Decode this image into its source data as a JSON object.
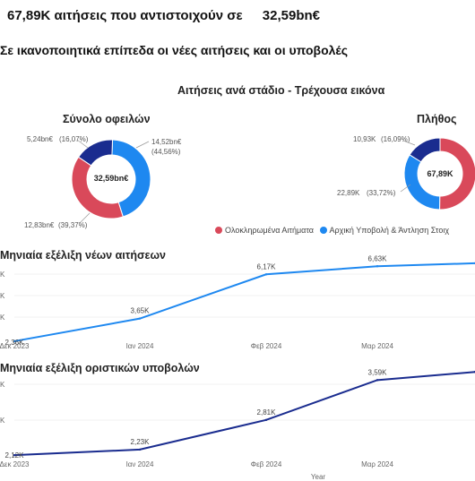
{
  "header": {
    "count": "67,89K",
    "text": "αιτήσεις που αντιστοιχούν σε",
    "amount": "32,59bn€"
  },
  "subheader": "Σε ικανοποιητικά επίπεδα οι νέες αιτήσεις και οι υποβολές",
  "panel_title": "Αιτήσεις ανά στάδιο - Τρέχουσα εικόνα",
  "legend": [
    {
      "label": "Ολοκληρωμένα Αιτήματα",
      "color": "#d9495a"
    },
    {
      "label": "Αρχική Υποβολή & Άντληση Στοιχ",
      "color": "#1e88f0"
    }
  ],
  "chart_data": [
    {
      "type": "pie",
      "title": "Σύνολο οφειλών",
      "center_label": "32,59bn€",
      "slices": [
        {
          "value_label": "14,52bn€",
          "pct_label": "(44,56%)",
          "pct": 44.56,
          "color": "#1e88f0"
        },
        {
          "value_label": "12,83bn€",
          "pct_label": "(39,37%)",
          "pct": 39.37,
          "color": "#d9495a"
        },
        {
          "value_label": "5,24bn€",
          "pct_label": "(16,07%)",
          "pct": 16.07,
          "color": "#1a2c8f"
        }
      ]
    },
    {
      "type": "pie",
      "title": "Πλήθος",
      "center_label": "67,89K",
      "slices": [
        {
          "value_label": "",
          "pct_label": "",
          "pct": 50.18,
          "color": "#d9495a"
        },
        {
          "value_label": "22,89K",
          "pct_label": "(33,72%)",
          "pct": 33.72,
          "color": "#1e88f0"
        },
        {
          "value_label": "10,93K",
          "pct_label": "(16,09%)",
          "pct": 16.09,
          "color": "#1a2c8f"
        }
      ]
    },
    {
      "type": "line",
      "title": "Μηνιαία εξέλιξη νέων αιτήσεων",
      "categories": [
        "Δεκ 2023",
        "Ιαν 2024",
        "Φεβ 2024",
        "Μαρ 2024",
        ""
      ],
      "values": [
        2.36,
        3.65,
        6.17,
        6.63,
        6.8
      ],
      "data_labels": [
        "2,36K",
        "3,65K",
        "6,17K",
        "6,63K",
        ""
      ],
      "color": "#1e88f0",
      "ylim": [
        2,
        7
      ]
    },
    {
      "type": "line",
      "title": "Μηνιαία εξέλιξη οριστικών υποβολών",
      "categories": [
        "Δεκ 2023",
        "Ιαν 2024",
        "Φεβ 2024",
        "Μαρ 2024",
        ""
      ],
      "values": [
        2.12,
        2.23,
        2.81,
        3.59,
        3.75
      ],
      "data_labels": [
        "2,12K",
        "2,23K",
        "2,81K",
        "3,59K",
        ""
      ],
      "xlabel": "Year",
      "color": "#1a2c8f",
      "ylim": [
        2,
        4
      ]
    }
  ]
}
